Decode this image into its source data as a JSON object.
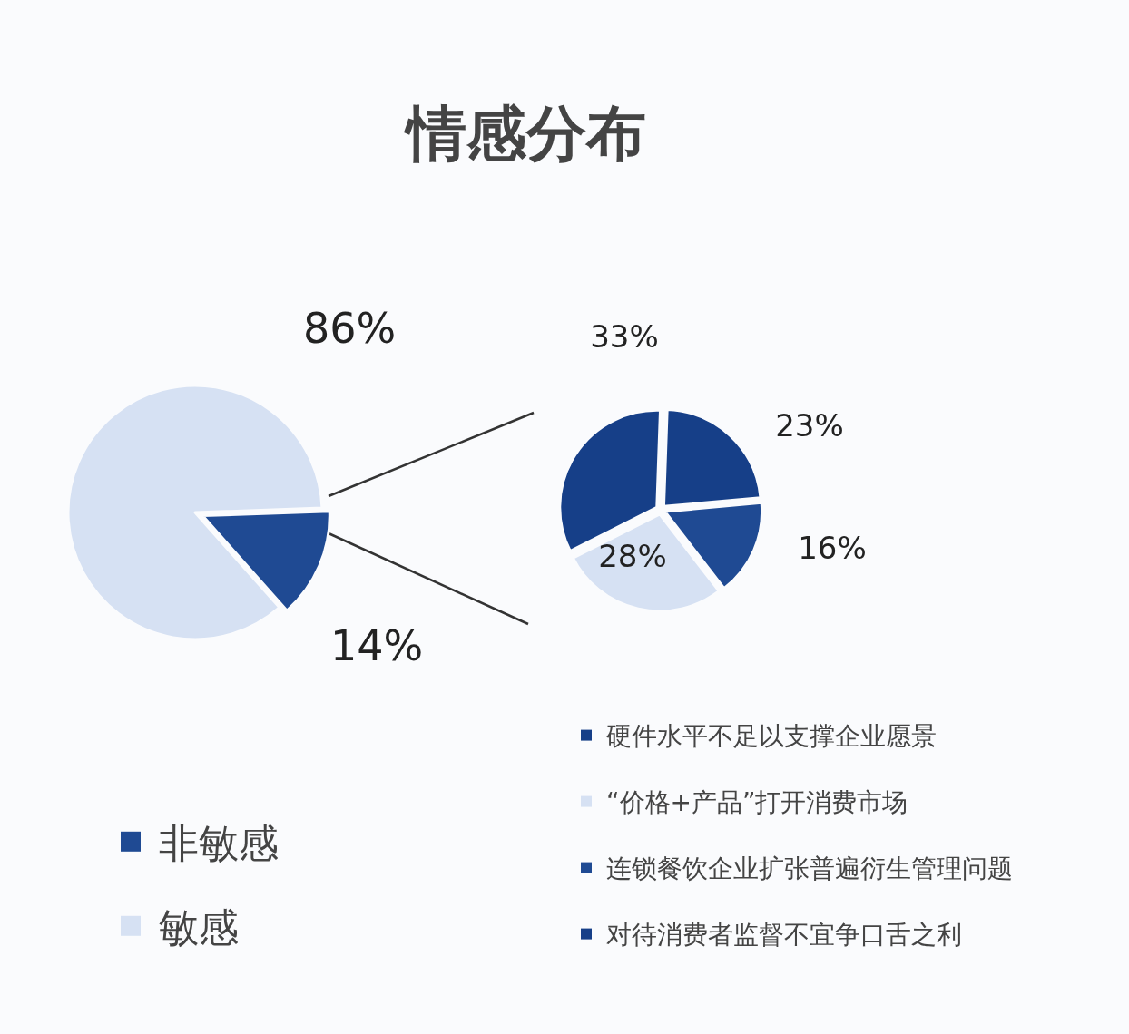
{
  "chart_data": [
    {
      "type": "pie",
      "title": "情感分布",
      "categories": [
        "非敏感",
        "敏感"
      ],
      "values": [
        14,
        86
      ],
      "colors": [
        "#1f4a93",
        "#d6e1f3"
      ],
      "value_labels": [
        "14%",
        "86%"
      ],
      "legend": "bottom left"
    },
    {
      "type": "pie",
      "categories": [
        "硬件水平不足以支撑企业愿景",
        "“价格+产品”打开消费市场",
        "连锁餐饮企业扩张普遍衍生管理问题",
        "对待消费者监督不宜争口舌之利"
      ],
      "values": [
        33,
        28,
        16,
        23
      ],
      "colors": [
        "#163f88",
        "#d6e1f3",
        "#1f4a93",
        "#163f88"
      ],
      "value_labels": [
        "33%",
        "28%",
        "16%",
        "23%"
      ],
      "legend": "bottom"
    }
  ]
}
